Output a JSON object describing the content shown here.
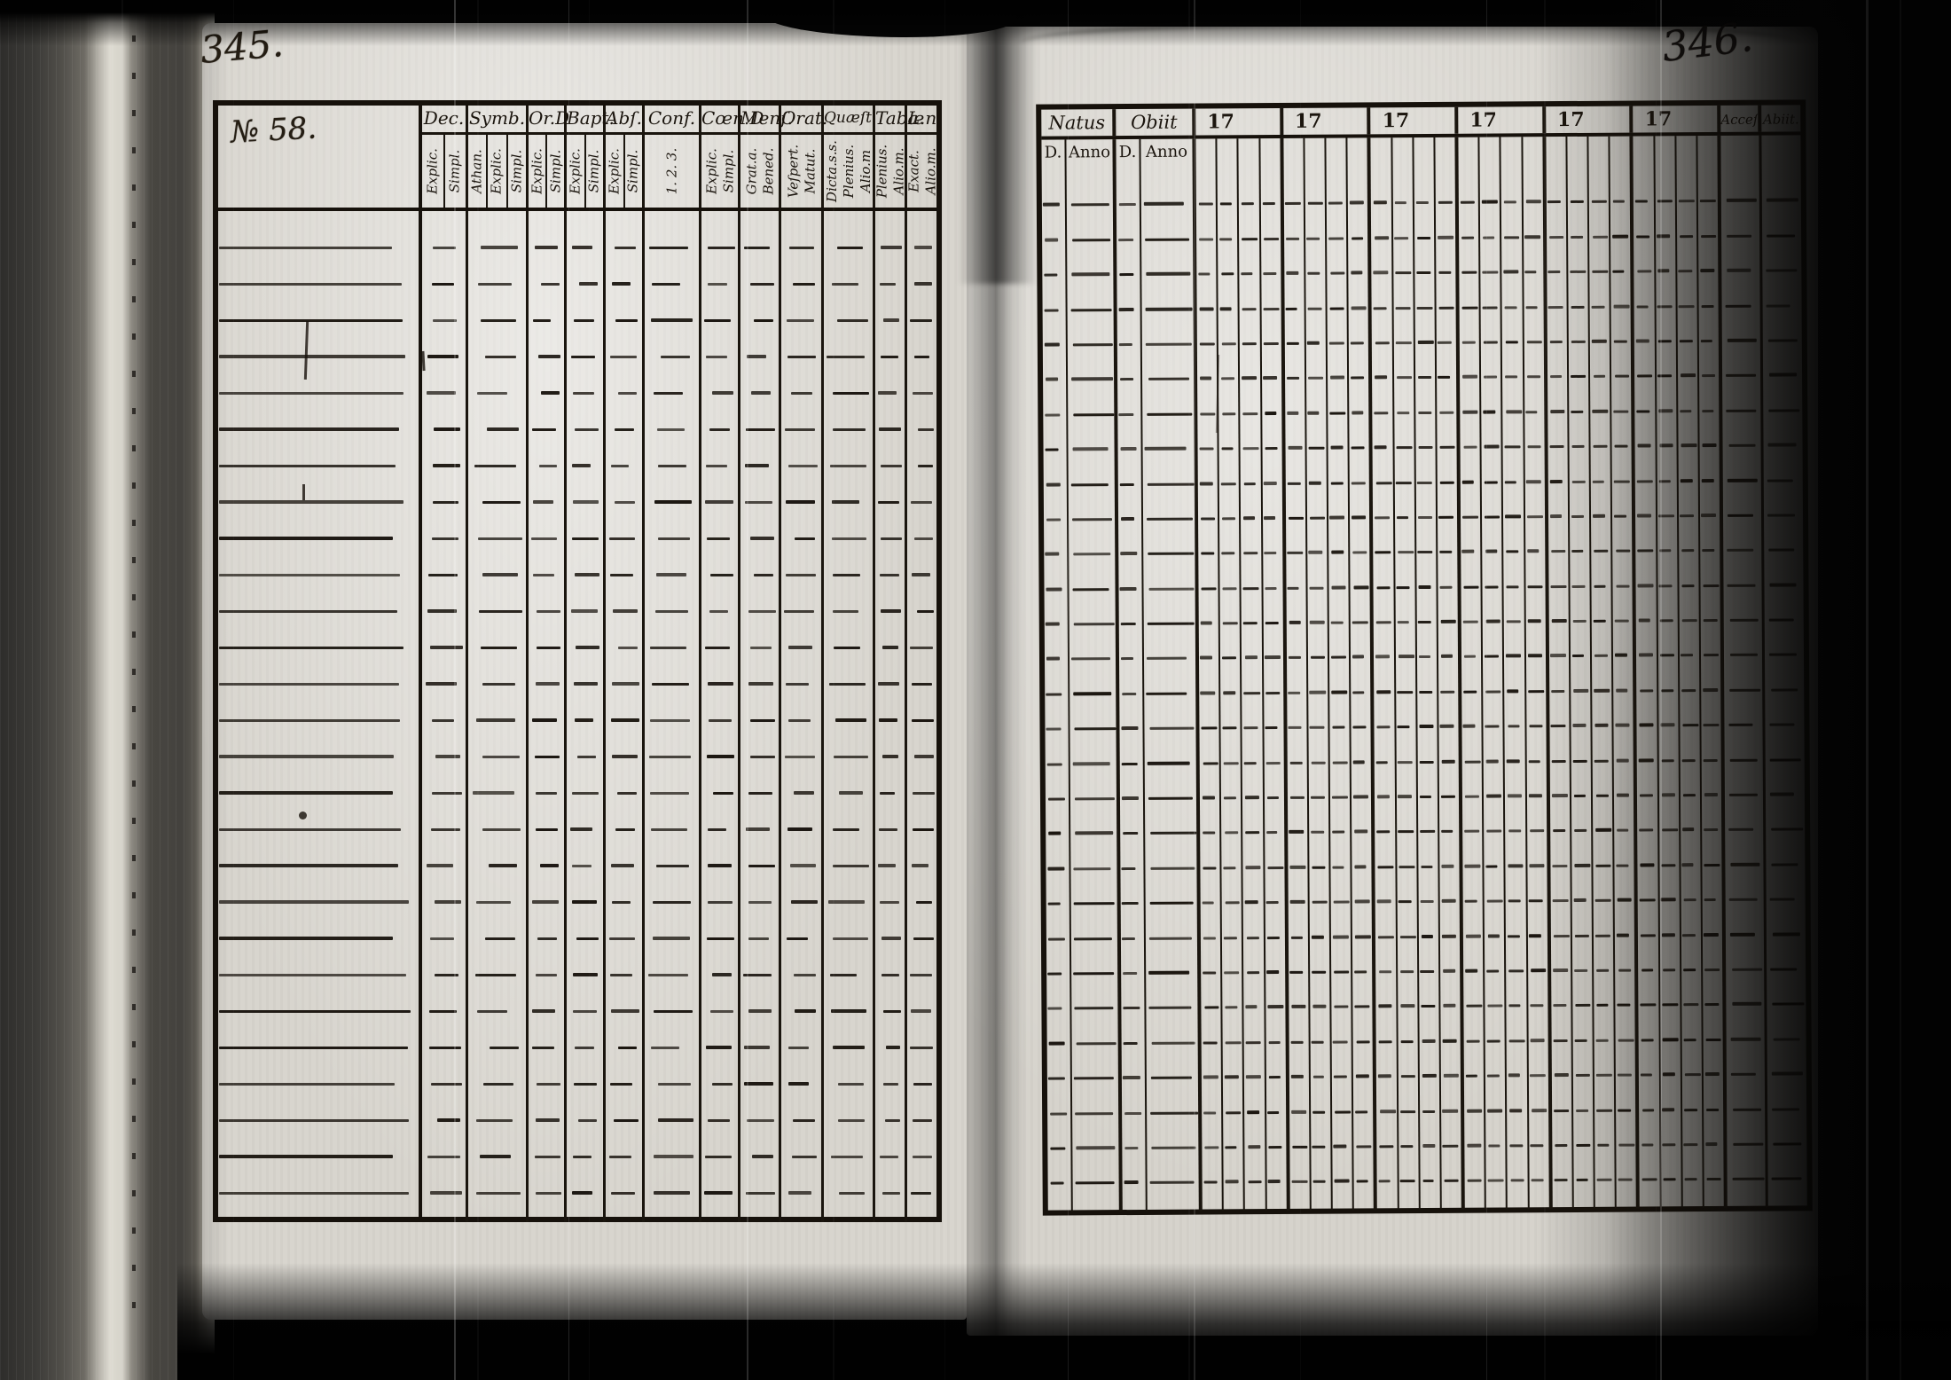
{
  "ink_color": "#17120c",
  "paper_color": "#d8d5ce",
  "pages": {
    "left": {
      "number": "345.",
      "table": {
        "header_note": "№ 58.",
        "columns": [
          {
            "label": "Dec.",
            "subs": [
              [
                "Explic."
              ],
              [
                "Simpl."
              ]
            ]
          },
          {
            "label": "Symb.",
            "subs": [
              [
                "Athan."
              ],
              [
                "Explic."
              ],
              [
                "Simpl."
              ]
            ]
          },
          {
            "label": "Or.D",
            "subs": [
              [
                "Explic."
              ],
              [
                "Simpl."
              ]
            ]
          },
          {
            "label": "Bapt.",
            "subs": [
              [
                "Explic."
              ],
              [
                "Simpl."
              ]
            ]
          },
          {
            "label": "Abſ.",
            "subs": [
              [
                "Explic."
              ],
              [
                "Simpl."
              ]
            ]
          },
          {
            "label": "Conf.",
            "subs": [
              [
                "1. 2. 3."
              ]
            ]
          },
          {
            "label": "Cœn.D",
            "subs": [
              [
                "Explic.",
                "Simpl."
              ]
            ]
          },
          {
            "label": "Menſ.",
            "subs": [
              [
                "Grat.a.",
                "Bened."
              ]
            ]
          },
          {
            "label": "Orat.",
            "subs": [
              [
                "Veſpert.",
                "Matut."
              ]
            ]
          },
          {
            "label": "Quæſt.",
            "subs": [
              [
                "Dicta.s.s.",
                "Plenius.",
                "Alio.m"
              ]
            ]
          },
          {
            "label": "Tabæ",
            "subs": [
              [
                "Plenius.",
                "Alio.m."
              ]
            ]
          },
          {
            "label": "L.n",
            "subs": [
              [
                "Exact.",
                "Alio.m."
              ]
            ]
          }
        ]
      }
    },
    "right": {
      "number": "346.",
      "table": {
        "columns": [
          {
            "label": "Natus",
            "subs": [
              "D.",
              "Anno"
            ]
          },
          {
            "label": "Obiit",
            "subs": [
              "D.",
              "Anno"
            ]
          },
          {
            "label": "17"
          },
          {
            "label": "17"
          },
          {
            "label": "17"
          },
          {
            "label": "17"
          },
          {
            "label": "17"
          },
          {
            "label": "17"
          },
          {
            "label": "Acceſ."
          },
          {
            "label": "Abiit."
          }
        ]
      }
    }
  }
}
